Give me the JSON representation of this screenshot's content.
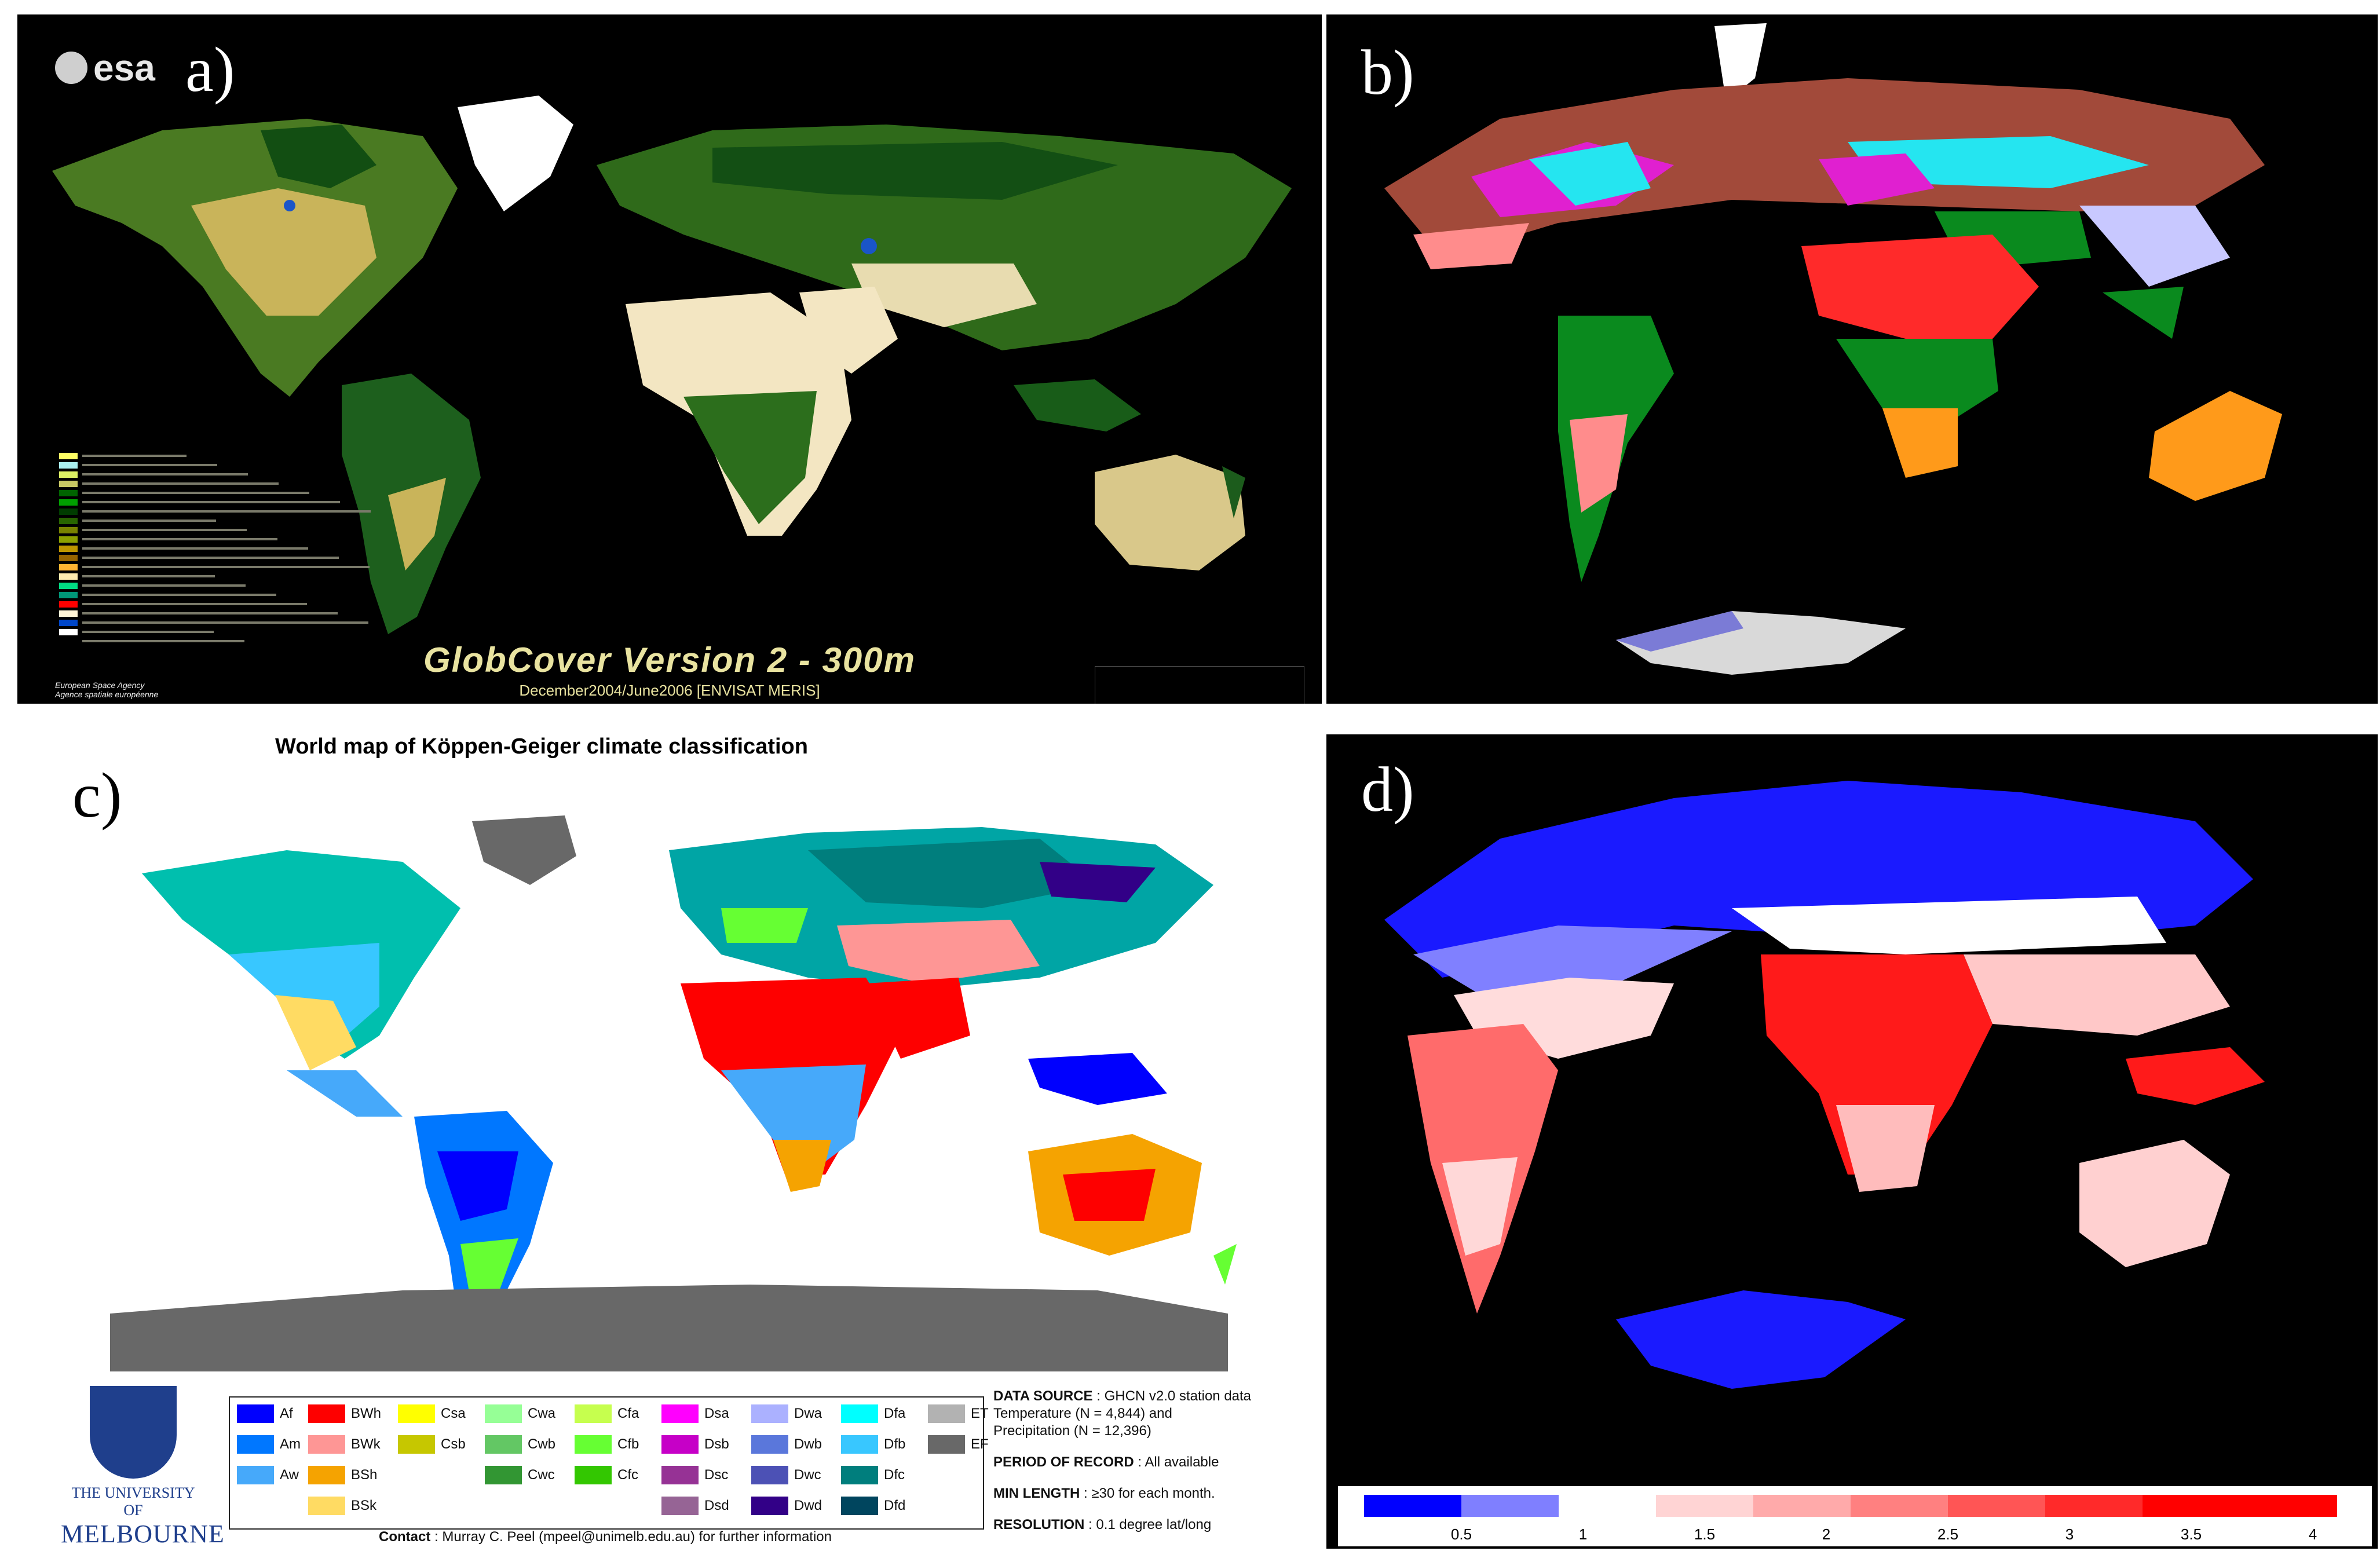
{
  "panels": {
    "a": {
      "label": "a)",
      "logo_text": "esa",
      "title": "GlobCover Version 2 - 300m",
      "subtitle": "December2004/June2006 [ENVISAT MERIS]",
      "agency_line1": "European Space Agency",
      "agency_line2": "Agence spatiale européenne",
      "legend_colors": [
        "#ffff64",
        "#aaf0f0",
        "#dcf064",
        "#c8c864",
        "#006400",
        "#00a000",
        "#003c00",
        "#286400",
        "#788200",
        "#8ca000",
        "#be9600",
        "#966400",
        "#ffb432",
        "#ffebaf",
        "#00dc83",
        "#009678",
        "#ff0000",
        "#fff5d7",
        "#0046c8",
        "#ffffff",
        "#000000"
      ],
      "colors": {
        "land_green": "#2f6a1a",
        "forest": "#114d12",
        "desert": "#f3e6c2",
        "cropland": "#c9b45a",
        "snow": "#ffffff",
        "water": "#1a55c8"
      }
    },
    "b": {
      "label": "b)",
      "colors": {
        "red": "#ff2a2a",
        "green": "#0a8a1e",
        "orange": "#ff9a1a",
        "cyan": "#25e5f0",
        "pink": "#ff8c8c",
        "brown": "#a24a3a",
        "magenta": "#e020d0",
        "lavender": "#c8c8ff",
        "salmon": "#c87870"
      }
    },
    "c": {
      "label": "c)",
      "title": "World map of Köppen-Geiger climate classification",
      "uni_line1": "THE UNIVERSITY OF",
      "uni_line2": "MELBOURNE",
      "legend": [
        {
          "code": "Af",
          "color": "#0000fe"
        },
        {
          "code": "Am",
          "color": "#0077ff"
        },
        {
          "code": "Aw",
          "color": "#46a9fa"
        },
        {
          "code": "BWh",
          "color": "#fe0000"
        },
        {
          "code": "BWk",
          "color": "#fe9695"
        },
        {
          "code": "BSh",
          "color": "#f5a301"
        },
        {
          "code": "BSk",
          "color": "#ffdb63"
        },
        {
          "code": "Csa",
          "color": "#ffff00"
        },
        {
          "code": "Csb",
          "color": "#c6c700"
        },
        {
          "code": "Cwa",
          "color": "#96ff96"
        },
        {
          "code": "Cwb",
          "color": "#63c764"
        },
        {
          "code": "Cwc",
          "color": "#329633"
        },
        {
          "code": "Cfa",
          "color": "#c6ff4e"
        },
        {
          "code": "Cfb",
          "color": "#66ff33"
        },
        {
          "code": "Cfc",
          "color": "#33c701"
        },
        {
          "code": "Dsa",
          "color": "#ff00fe"
        },
        {
          "code": "Dsb",
          "color": "#c600c7"
        },
        {
          "code": "Dsc",
          "color": "#963295"
        },
        {
          "code": "Dsd",
          "color": "#966495"
        },
        {
          "code": "Dwa",
          "color": "#abb1ff"
        },
        {
          "code": "Dwb",
          "color": "#5a77db"
        },
        {
          "code": "Dwc",
          "color": "#4c51b5"
        },
        {
          "code": "Dwd",
          "color": "#320087"
        },
        {
          "code": "Dfa",
          "color": "#00ffff"
        },
        {
          "code": "Dfb",
          "color": "#38c7ff"
        },
        {
          "code": "Dfc",
          "color": "#007e7d"
        },
        {
          "code": "Dfd",
          "color": "#00455e"
        },
        {
          "code": "ET",
          "color": "#b2b2b2"
        },
        {
          "code": "EF",
          "color": "#686868"
        }
      ],
      "data_source_label": "DATA SOURCE",
      "data_source_text": ": GHCN v2.0 station data",
      "data_source_line2": "Temperature (N = 4,844) and",
      "data_source_line3": "Precipitation (N = 12,396)",
      "period_label": "PERIOD OF RECORD",
      "period_text": ": All available",
      "min_label": "MIN LENGTH",
      "min_text": ": ≥30 for each month.",
      "res_label": "RESOLUTION",
      "res_text": ": 0.1 degree lat/long",
      "contact_label": "Contact",
      "contact_text": ": Murray C. Peel (mpeel@unimelb.edu.au) for further information"
    },
    "d": {
      "label": "d)",
      "colorbar_ticks": [
        "0.5",
        "1",
        "1.5",
        "2",
        "2.5",
        "3",
        "3.5",
        "4"
      ],
      "colorbar_colors": [
        "#0000ff",
        "#7f7fff",
        "#ffffff",
        "#ffd4d4",
        "#ffaaaa",
        "#ff8080",
        "#ff5555",
        "#ff2a2a",
        "#ff0000",
        "#ff0000"
      ]
    }
  }
}
